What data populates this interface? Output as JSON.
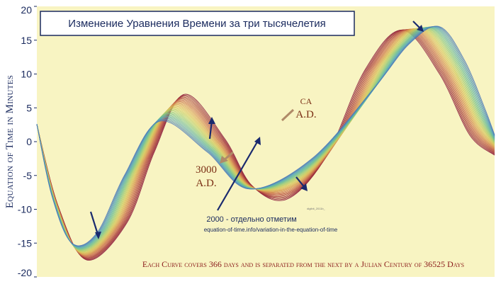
{
  "chart_data": {
    "type": "line",
    "title": "Изменение Уравнения Времени за три тысячелетия",
    "ylabel": "Equation of Time in Minutes",
    "xlabel": "",
    "ylim": [
      -20,
      20
    ],
    "yticks": [
      "20",
      "15",
      "10",
      "5",
      "0",
      "-5",
      "-10",
      "-15",
      "-20"
    ],
    "series_count": 30,
    "series_note": "Each curve spans 366 days; curves drift from ca A.D. (red, later peaks) toward 3000 A.D. (green/blue)",
    "series_first": {
      "name": "ca A.D.",
      "day": [
        0,
        17,
        40,
        72,
        94,
        118,
        150,
        172,
        200,
        232,
        262,
        292,
        322,
        346,
        366
      ],
      "eot": [
        2.5,
        -9.5,
        -17.5,
        -12,
        -1.5,
        7,
        0.5,
        -6.5,
        -8.5,
        -2,
        10.5,
        16.5,
        10,
        1,
        -2
      ]
    },
    "series_last": {
      "name": "3000 A.D.",
      "day": [
        0,
        12,
        28,
        48,
        70,
        98,
        136,
        170,
        220,
        270,
        298,
        322,
        342,
        358,
        366
      ],
      "eot": [
        2.6,
        -8,
        -15,
        -13.5,
        -5,
        3,
        -1.5,
        -7,
        -2.5,
        8,
        14.5,
        17,
        12,
        5,
        1
      ]
    },
    "annotations": {
      "ca_small": "CA",
      "ca_big": "A.D.",
      "ad3000_year": "3000",
      "ad3000_era": "A.D.",
      "note_2000": "2000 - отдельно отметим",
      "url": "equation-of-time.info/variation-in-the-equation-of-time",
      "tiny": "digibit_2011b_"
    },
    "footnote": "Each Curve covers 366 days and is separated from the next by a Julian Century of 36525 Days",
    "colors": {
      "background": "#f8f4c2",
      "outer_background": "#ffffff",
      "title_border": "#1a2a5e",
      "arrow_blue": "#1a2a6e",
      "arrow_brown": "#b08a68",
      "gradient": [
        "#8b1a3a",
        "#a83a3a",
        "#c86a4a",
        "#d8a050",
        "#d4c85a",
        "#a8cc70",
        "#70c090",
        "#58a8b8",
        "#4a78b8"
      ]
    }
  }
}
